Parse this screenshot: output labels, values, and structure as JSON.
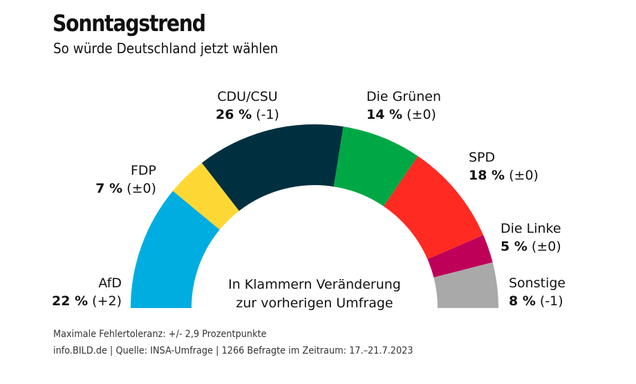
{
  "header": {
    "title": "Sonntagstrend",
    "subtitle": "So würde Deutschland jetzt wählen"
  },
  "chart_data": {
    "type": "pie",
    "style": "half-donut",
    "note_line1": "In Klammern Veränderung",
    "note_line2": "zur vorherigen Umfrage",
    "unit": "%",
    "slices": [
      {
        "name": "AfD",
        "value": 22,
        "change": "(+2)",
        "color": "#00ADE0"
      },
      {
        "name": "FDP",
        "value": 7,
        "change": "(±0)",
        "color": "#FDD835"
      },
      {
        "name": "CDU/CSU",
        "value": 26,
        "change": "(-1)",
        "color": "#00303F"
      },
      {
        "name": "Die Grünen",
        "value": 14,
        "change": "(±0)",
        "color": "#00A845"
      },
      {
        "name": "SPD",
        "value": 18,
        "change": "(±0)",
        "color": "#FF2A22"
      },
      {
        "name": "Die Linke",
        "value": 5,
        "change": "(±0)",
        "color": "#BE0059"
      },
      {
        "name": "Sonstige",
        "value": 8,
        "change": "(-1)",
        "color": "#A9A9A9"
      }
    ]
  },
  "footer": {
    "line1": "Maximale Fehlertoleranz: +/- 2,9 Prozentpunkte",
    "line2": "info.BILD.de | Quelle: INSA-Umfrage | 1266 Befragte im Zeitraum: 17.–21.7.2023"
  }
}
